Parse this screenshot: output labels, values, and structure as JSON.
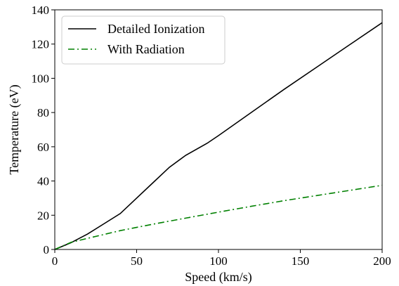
{
  "chart_data": {
    "type": "line",
    "xlabel": "Speed (km/s)",
    "ylabel": "Temperature (eV)",
    "xlim": [
      0,
      200
    ],
    "ylim": [
      0,
      140
    ],
    "x_ticks": [
      0,
      50,
      100,
      150,
      200
    ],
    "y_ticks": [
      0,
      20,
      40,
      60,
      80,
      100,
      120,
      140
    ],
    "grid": false,
    "legend_position": "top-left",
    "series": [
      {
        "name": "Detailed Ionization",
        "color": "#000000",
        "linestyle": "solid",
        "x": [
          0,
          5,
          10,
          15,
          20,
          30,
          40,
          50,
          60,
          70,
          80,
          93,
          100,
          120,
          140,
          160,
          180,
          200
        ],
        "y": [
          0,
          2,
          4,
          6.5,
          9,
          15,
          21,
          30,
          39,
          48,
          55,
          62,
          66.5,
          80,
          93.5,
          106.5,
          119.5,
          132.5
        ]
      },
      {
        "name": "With Radiation",
        "color": "#008000",
        "linestyle": "dashdot",
        "x": [
          0,
          10,
          20,
          40,
          60,
          80,
          100,
          120,
          140,
          160,
          180,
          200
        ],
        "y": [
          0,
          4.2,
          6.5,
          11,
          14.8,
          18.3,
          21.8,
          25.2,
          28.5,
          31.5,
          34.5,
          37.5
        ]
      }
    ]
  }
}
